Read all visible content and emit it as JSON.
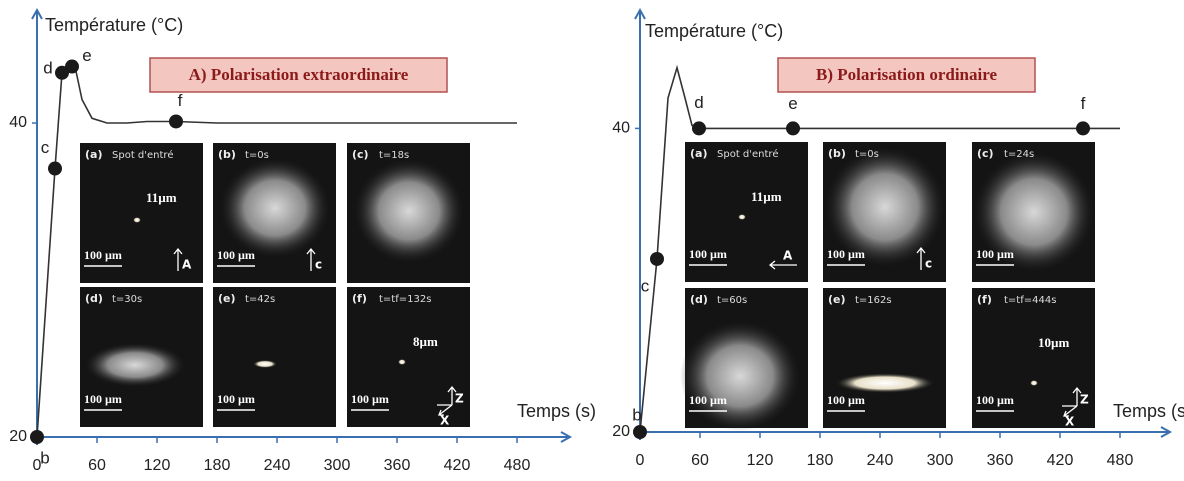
{
  "chart_data": [
    {
      "type": "line",
      "title": "A) Polarisation extraordinaire",
      "y_label": "Température (°C)",
      "x_label": "Temps (s)",
      "xlim": [
        0,
        533
      ],
      "ylim": [
        20,
        47.2
      ],
      "xticks": [
        0,
        60,
        120,
        180,
        240,
        300,
        360,
        420,
        480
      ],
      "yticks": [
        20,
        40
      ],
      "color": "#333333",
      "axis_color": "#3a6fb0",
      "x": [
        0,
        18,
        25,
        32,
        38,
        45,
        55,
        70,
        90,
        110,
        139,
        180,
        480
      ],
      "values": [
        20,
        37.1,
        43.2,
        43.6,
        43.6,
        41.5,
        40.3,
        40.0,
        40.0,
        40.1,
        40.1,
        40.0,
        40.0
      ],
      "points": {
        "labels": [
          "b",
          "c",
          "d",
          "e",
          "f"
        ],
        "x": [
          0,
          18,
          25,
          35,
          139
        ],
        "values": [
          20,
          37.1,
          43.2,
          43.6,
          40.1
        ]
      },
      "panels": [
        {
          "tag": "(a)",
          "time": "Spot d'entré",
          "size": "11µm",
          "scale": "100 µm",
          "axis": "A"
        },
        {
          "tag": "(b)",
          "time": "t=0s",
          "scale": "100 µm",
          "axis": "c"
        },
        {
          "tag": "(c)",
          "time": "t=18s"
        },
        {
          "tag": "(d)",
          "time": "t=30s",
          "scale": "100 µm"
        },
        {
          "tag": "(e)",
          "time": "t=42s",
          "scale": "100 µm"
        },
        {
          "tag": "(f)",
          "time": "t=tf=132s",
          "size": "8µm",
          "scale": "100 µm",
          "axis_z": "Z",
          "axis_x": "X"
        }
      ]
    },
    {
      "type": "line",
      "title": "B) Polarisation ordinaire",
      "y_label": "Température (°C)",
      "x_label": "Temps (s)",
      "xlim": [
        0,
        530
      ],
      "ylim": [
        20,
        47.8
      ],
      "xticks": [
        0,
        60,
        120,
        180,
        240,
        300,
        360,
        420,
        480
      ],
      "yticks": [
        20,
        40
      ],
      "color": "#333333",
      "axis_color": "#3a6fb0",
      "x": [
        0,
        17,
        28,
        37,
        45,
        52,
        59,
        100,
        153,
        300,
        443,
        480
      ],
      "values": [
        20,
        31.4,
        42,
        44,
        42,
        40.2,
        40,
        40,
        40,
        40,
        40,
        40
      ],
      "points": {
        "labels": [
          "b",
          "c",
          "d",
          "e",
          "f"
        ],
        "x": [
          0,
          17,
          59,
          153,
          443
        ],
        "values": [
          20,
          31.4,
          40,
          40,
          40
        ]
      },
      "panels": [
        {
          "tag": "(a)",
          "time": "Spot d'entré",
          "size": "11µm",
          "scale": "100 µm",
          "axis": "A"
        },
        {
          "tag": "(b)",
          "time": "t=0s",
          "scale": "100 µm",
          "axis": "c"
        },
        {
          "tag": "(c)",
          "time": "t=24s",
          "scale": "100 µm"
        },
        {
          "tag": "(d)",
          "time": "t=60s",
          "scale": "100 µm"
        },
        {
          "tag": "(e)",
          "time": "t=162s",
          "scale": "100 µm"
        },
        {
          "tag": "(f)",
          "time": "t=tf=444s",
          "size": "10µm",
          "scale": "100 µm",
          "axis_z": "Z",
          "axis_x": "X"
        }
      ]
    }
  ]
}
